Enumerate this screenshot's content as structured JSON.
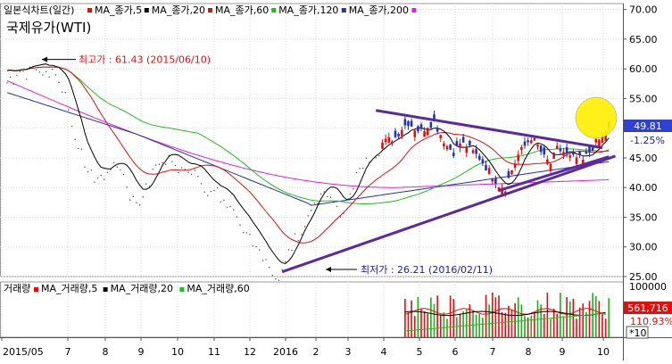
{
  "legend": {
    "price_label": "일본식차트(일간)",
    "price_mas": [
      {
        "label": "MA_종가,5",
        "color": "#e01010"
      },
      {
        "label": "MA_종가,20",
        "color": "#000000"
      },
      {
        "label": "MA_종가,60",
        "color": "#e01010"
      },
      {
        "label": "MA_종가,120",
        "color": "#22bb22"
      },
      {
        "label": "MA_종가,200",
        "color": "#2233aa"
      },
      {
        "label": "",
        "color": "#dd22dd"
      }
    ],
    "volume_label": "거래량",
    "volume_mas": [
      {
        "label": "MA_거래량,5",
        "color": "#e01010"
      },
      {
        "label": "MA_거래량,20",
        "color": "#000000"
      },
      {
        "label": "MA_거래량,60",
        "color": "#22bb22"
      }
    ]
  },
  "title": "국제유가(WTI)",
  "chart_data": {
    "type": "candlestick",
    "title": "국제유가(WTI)",
    "x_ticks": [
      "2015/05",
      "7",
      "8",
      "9",
      "10",
      "11",
      "12",
      "2016",
      "2",
      "3",
      "4",
      "5",
      "6",
      "7",
      "8",
      "9",
      "10"
    ],
    "y_ticks": [
      25.0,
      30.0,
      35.0,
      40.0,
      45.0,
      50.0,
      55.0,
      60.0,
      65.0,
      70.0
    ],
    "ylim": [
      25,
      71
    ],
    "current_price": "49.81",
    "change_pct": "-1.25%",
    "annotations": {
      "high": {
        "label": "최고가 : 61.43 (2015/06/10)",
        "value": 61.43,
        "date": "2015/06/10"
      },
      "low": {
        "label": "최저가 : 26.21 (2016/02/11)",
        "value": 26.21,
        "date": "2016/02/11"
      }
    },
    "price_series": {
      "anchors": [
        [
          0,
          59.7
        ],
        [
          3,
          60.5
        ],
        [
          5,
          61.0
        ],
        [
          6,
          60.2
        ],
        [
          7,
          60.8
        ],
        [
          8,
          59.5
        ],
        [
          9,
          57.0
        ],
        [
          10,
          52.0
        ],
        [
          10.5,
          50.0
        ],
        [
          11,
          48.0
        ],
        [
          11.5,
          46.5
        ],
        [
          12,
          45.0
        ],
        [
          13,
          43.5
        ],
        [
          14,
          42.5
        ],
        [
          15,
          43.2
        ],
        [
          16,
          44.5
        ],
        [
          17,
          44.5
        ],
        [
          18,
          43.5
        ],
        [
          19,
          40.5
        ],
        [
          20,
          38.5
        ],
        [
          21,
          40.0
        ],
        [
          22,
          42.0
        ],
        [
          23,
          44.5
        ],
        [
          24,
          46.0
        ],
        [
          25,
          46.0
        ],
        [
          26,
          45.0
        ],
        [
          27,
          44.0
        ],
        [
          28,
          44.5
        ],
        [
          29,
          44.0
        ],
        [
          30,
          42.0
        ],
        [
          31,
          40.0
        ],
        [
          32,
          40.7
        ],
        [
          33,
          39.8
        ],
        [
          34,
          38.5
        ],
        [
          35,
          37.0
        ],
        [
          36,
          35.5
        ],
        [
          37,
          33.5
        ],
        [
          38,
          31.5
        ],
        [
          39,
          30.0
        ],
        [
          40,
          29.0
        ],
        [
          41,
          27.5
        ],
        [
          42,
          26.5
        ],
        [
          43,
          28.0
        ],
        [
          43.5,
          30.0
        ],
        [
          44,
          31.5
        ],
        [
          45,
          33.0
        ],
        [
          46,
          35.5
        ],
        [
          47,
          37.5
        ],
        [
          48,
          39.5
        ],
        [
          49,
          41.0
        ],
        [
          50,
          40.0
        ],
        [
          51,
          37.5
        ],
        [
          52,
          37.0
        ],
        [
          53,
          40.0
        ],
        [
          54,
          43.0
        ],
        [
          55,
          44.5
        ],
        [
          56,
          46.0
        ],
        [
          57,
          47.0
        ],
        [
          58,
          47.5
        ],
        [
          59,
          48.0
        ],
        [
          60,
          48.5
        ],
        [
          61,
          50.0
        ],
        [
          62,
          51.0
        ],
        [
          63,
          50.0
        ],
        [
          64,
          49.5
        ],
        [
          65,
          50.5
        ],
        [
          66,
          51.0
        ],
        [
          67,
          49.0
        ],
        [
          68,
          47.0
        ],
        [
          69,
          46.0
        ],
        [
          70,
          47.5
        ],
        [
          71,
          47.0
        ],
        [
          72,
          46.0
        ],
        [
          73,
          45.0
        ],
        [
          74,
          43.5
        ],
        [
          75,
          42.0
        ],
        [
          76,
          40.5
        ],
        [
          77,
          40.0
        ],
        [
          78,
          43.0
        ],
        [
          79,
          45.5
        ],
        [
          80,
          47.0
        ],
        [
          81,
          48.5
        ],
        [
          82,
          47.0
        ],
        [
          83,
          45.0
        ],
        [
          84,
          44.0
        ],
        [
          85,
          46.5
        ],
        [
          86,
          46.0
        ],
        [
          87,
          45.0
        ],
        [
          88,
          45.0
        ],
        [
          89,
          44.5
        ],
        [
          90,
          46.0
        ],
        [
          91,
          47.5
        ],
        [
          92,
          48.5
        ],
        [
          93,
          49.8
        ]
      ]
    },
    "trendlines": [
      {
        "from": [
          57,
          53.0
        ],
        "to": [
          92,
          46.7
        ]
      },
      {
        "from": [
          42.5,
          25.8
        ],
        "to": [
          94,
          45.3
        ]
      },
      {
        "from": [
          76,
          39.5
        ],
        "to": [
          93,
          45.2
        ]
      }
    ],
    "volume": {
      "ymax": 100000,
      "axis_label": "100000",
      "current": "561,716",
      "pct": "110.93%",
      "unit": "*10"
    }
  }
}
